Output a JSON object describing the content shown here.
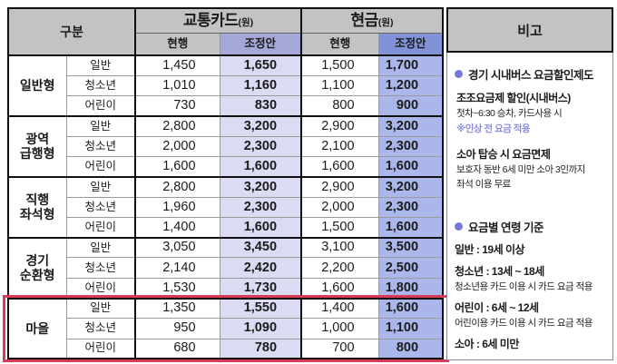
{
  "colors": {
    "header_gray": "#c3c3c3",
    "card_adjusted_header": "#a5a7d6",
    "card_adjusted_cell": "#dbdcf4",
    "cash_adjusted_header": "#8292d6",
    "cash_adjusted_cell": "#abb7eb",
    "highlight_red": "#d63b58",
    "bullet_violet": "#7577dd",
    "note_violet": "#8b8de4"
  },
  "header": {
    "category": "구분",
    "card_group": "교통카드",
    "cash_group": "현금",
    "unit": "(원)",
    "current": "현행",
    "adjusted": "조정안"
  },
  "table": {
    "groups": [
      {
        "name_lines": [
          "일반형"
        ],
        "highlighted": false,
        "rows": [
          {
            "sub": "일반",
            "card_current": "1,450",
            "card_adjusted": "1,650",
            "cash_current": "1,500",
            "cash_adjusted": "1,700"
          },
          {
            "sub": "청소년",
            "card_current": "1,010",
            "card_adjusted": "1,160",
            "cash_current": "1,100",
            "cash_adjusted": "1,200"
          },
          {
            "sub": "어린이",
            "card_current": "730",
            "card_adjusted": "830",
            "cash_current": "800",
            "cash_adjusted": "900"
          }
        ]
      },
      {
        "name_lines": [
          "광역",
          "급행형"
        ],
        "highlighted": false,
        "rows": [
          {
            "sub": "일반",
            "card_current": "2,800",
            "card_adjusted": "3,200",
            "cash_current": "2,900",
            "cash_adjusted": "3,200"
          },
          {
            "sub": "청소년",
            "card_current": "2,000",
            "card_adjusted": "2,300",
            "cash_current": "2,100",
            "cash_adjusted": "2,300"
          },
          {
            "sub": "어린이",
            "card_current": "1,600",
            "card_adjusted": "1,600",
            "cash_current": "1,600",
            "cash_adjusted": "1,600"
          }
        ]
      },
      {
        "name_lines": [
          "직행",
          "좌석형"
        ],
        "highlighted": false,
        "rows": [
          {
            "sub": "일반",
            "card_current": "2,800",
            "card_adjusted": "3,200",
            "cash_current": "2,900",
            "cash_adjusted": "3,200"
          },
          {
            "sub": "청소년",
            "card_current": "1,960",
            "card_adjusted": "2,300",
            "cash_current": "2,000",
            "cash_adjusted": "2,300"
          },
          {
            "sub": "어린이",
            "card_current": "1,400",
            "card_adjusted": "1,600",
            "cash_current": "1,500",
            "cash_adjusted": "1,600"
          }
        ]
      },
      {
        "name_lines": [
          "경기",
          "순환형"
        ],
        "highlighted": false,
        "rows": [
          {
            "sub": "일반",
            "card_current": "3,050",
            "card_adjusted": "3,450",
            "cash_current": "3,100",
            "cash_adjusted": "3,500"
          },
          {
            "sub": "청소년",
            "card_current": "2,140",
            "card_adjusted": "2,420",
            "cash_current": "2,200",
            "cash_adjusted": "2,500"
          },
          {
            "sub": "어린이",
            "card_current": "1,530",
            "card_adjusted": "1,730",
            "cash_current": "1,600",
            "cash_adjusted": "1,800"
          }
        ]
      },
      {
        "name_lines": [
          "마을"
        ],
        "highlighted": true,
        "rows": [
          {
            "sub": "일반",
            "card_current": "1,350",
            "card_adjusted": "1,550",
            "cash_current": "1,400",
            "cash_adjusted": "1,600"
          },
          {
            "sub": "청소년",
            "card_current": "950",
            "card_adjusted": "1,090",
            "cash_current": "1,000",
            "cash_adjusted": "1,100"
          },
          {
            "sub": "어린이",
            "card_current": "680",
            "card_adjusted": "780",
            "cash_current": "700",
            "cash_adjusted": "800"
          }
        ]
      }
    ]
  },
  "notes": {
    "title": "비고",
    "section1": {
      "title": "경기 시내버스 요금할인제도",
      "item1_title": "조조요금제 할인(시내버스)",
      "item1_line1": "첫차~6:30 승차, 카드사용 시",
      "item1_note": "※인상 전 요금 적용",
      "item2_title": "소아 탑승 시 요금면제",
      "item2_line1": "보호자 동반 6세 미만 소아 3인까지",
      "item2_line2": "좌석 이용 무료"
    },
    "section2": {
      "title": "요금별 연령 기준",
      "age1": "일반 : 19세 이상",
      "age2": "청소년 : 13세 ~ 18세",
      "age2_sub": "청소년용 카드 이용 시 카드 요금 적용",
      "age3": "어린이 : 6세 ~ 12세",
      "age3_sub": "어린이용 카드 이용 시 카드 요금 적용",
      "age4": "소아 : 6세 미만"
    }
  }
}
